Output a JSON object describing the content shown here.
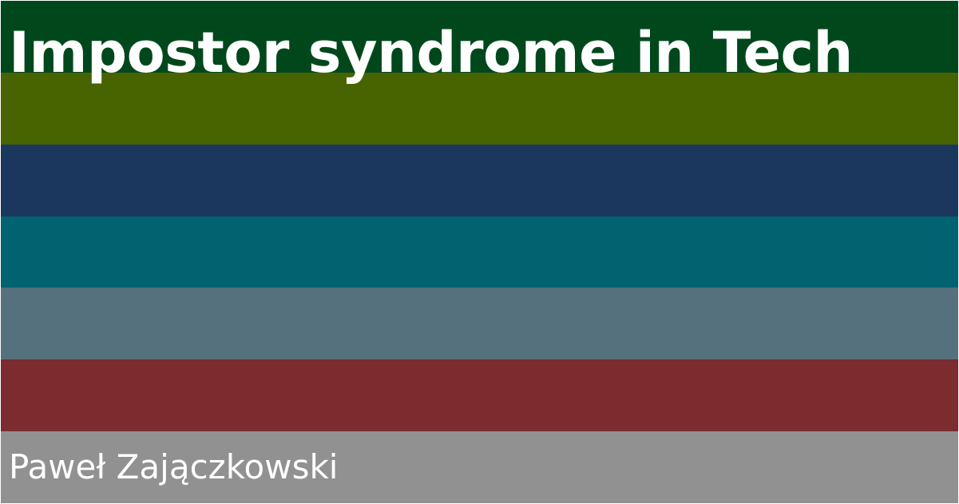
{
  "title": "Impostor syndrome in Tech",
  "author": "Paweł Zajączkowski",
  "stripe_colors": [
    "#00481c",
    "#476400",
    "#1c375d",
    "#01636f",
    "#54717d",
    "#7c2b2f",
    "#919191"
  ],
  "text_color": "#ffffff"
}
